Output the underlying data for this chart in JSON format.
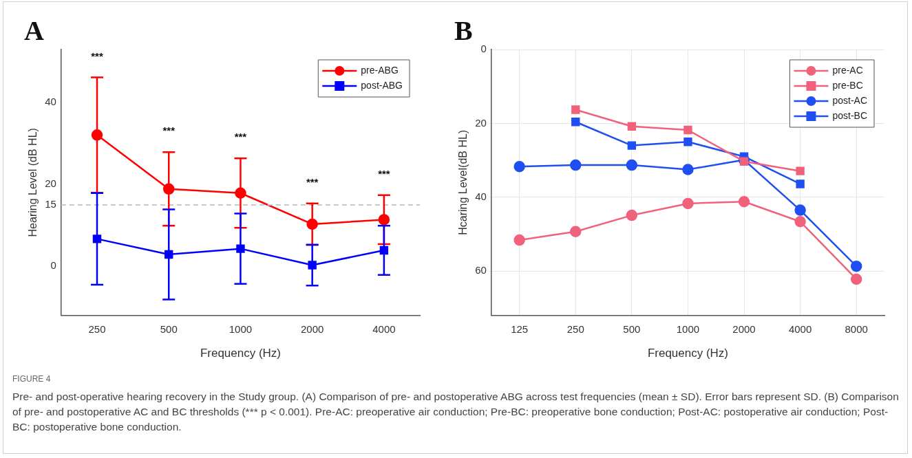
{
  "chart_data": [
    {
      "type": "line",
      "title": "A",
      "xlabel": "Frequency (Hz)",
      "ylabel": "Hearing Level (dB HL)",
      "categories": [
        "250",
        "500",
        "1000",
        "2000",
        "4000"
      ],
      "series": [
        {
          "name": "pre-ABG",
          "color": "#ff0000",
          "marker": "circle",
          "values": [
            32.1,
            18.9,
            17.9,
            10.3,
            11.4
          ],
          "errors": [
            14.1,
            9.0,
            8.5,
            5.1,
            6.0
          ]
        },
        {
          "name": "post-ABG",
          "color": "#0000ff",
          "marker": "square",
          "values": [
            6.7,
            2.9,
            4.3,
            0.3,
            3.9
          ],
          "errors": [
            11.2,
            11.0,
            8.6,
            5.0,
            6.0
          ]
        }
      ],
      "ylim": [
        -12,
        53
      ],
      "yticks": [
        0,
        15,
        20,
        40
      ],
      "grid": false,
      "legend": "top right",
      "ref_lines": [
        {
          "axis": "y",
          "value": 15,
          "color": "#c8c8c8",
          "line_style": "dashed"
        }
      ],
      "annotations": [
        "***",
        "***",
        "***",
        "***",
        "***"
      ]
    },
    {
      "type": "line",
      "title": "B",
      "xlabel": "Frequency (Hz)",
      "ylabel": "Hcaring Level(dB HL)",
      "categories": [
        "125",
        "250",
        "500",
        "1000",
        "2000",
        "4000",
        "8000"
      ],
      "series": [
        {
          "name": "pre-AC",
          "color": "#f0627c",
          "marker": "circle",
          "values": [
            51.6,
            49.3,
            44.9,
            41.7,
            41.2,
            46.6,
            62.2
          ]
        },
        {
          "name": "pre-BC",
          "color": "#f0627c",
          "marker": "square",
          "values": [
            null,
            16.3,
            20.8,
            21.8,
            30.3,
            32.9,
            null
          ]
        },
        {
          "name": "post-AC",
          "color": "#1f4ff0",
          "marker": "circle",
          "values": [
            31.7,
            31.3,
            31.3,
            32.5,
            29.9,
            43.5,
            58.7
          ]
        },
        {
          "name": "post-BC",
          "color": "#1f4ff0",
          "marker": "square",
          "values": [
            null,
            19.6,
            26.0,
            25.0,
            29.0,
            36.4,
            null
          ]
        }
      ],
      "ylim": [
        72,
        0
      ],
      "yticks": [
        0,
        20,
        40,
        60
      ],
      "grid": true,
      "legend": "top right"
    },
    {
      "type": "other",
      "annotations": [
        "FIGURE 4",
        "Pre- and post-operative hearing recovery in the Study group. (A) Comparison of pre- and postoperative ABG across test frequencies (mean ± SD). Error bars represent SD. (B) Comparison of pre- and postoperative AC and BC thresholds (*** p < 0.001). Pre-AC: preoperative air conduction; Pre-BC: preoperative bone conduction; Post-AC: postoperative air conduction; Post-BC: postoperative bone conduction."
      ]
    }
  ]
}
